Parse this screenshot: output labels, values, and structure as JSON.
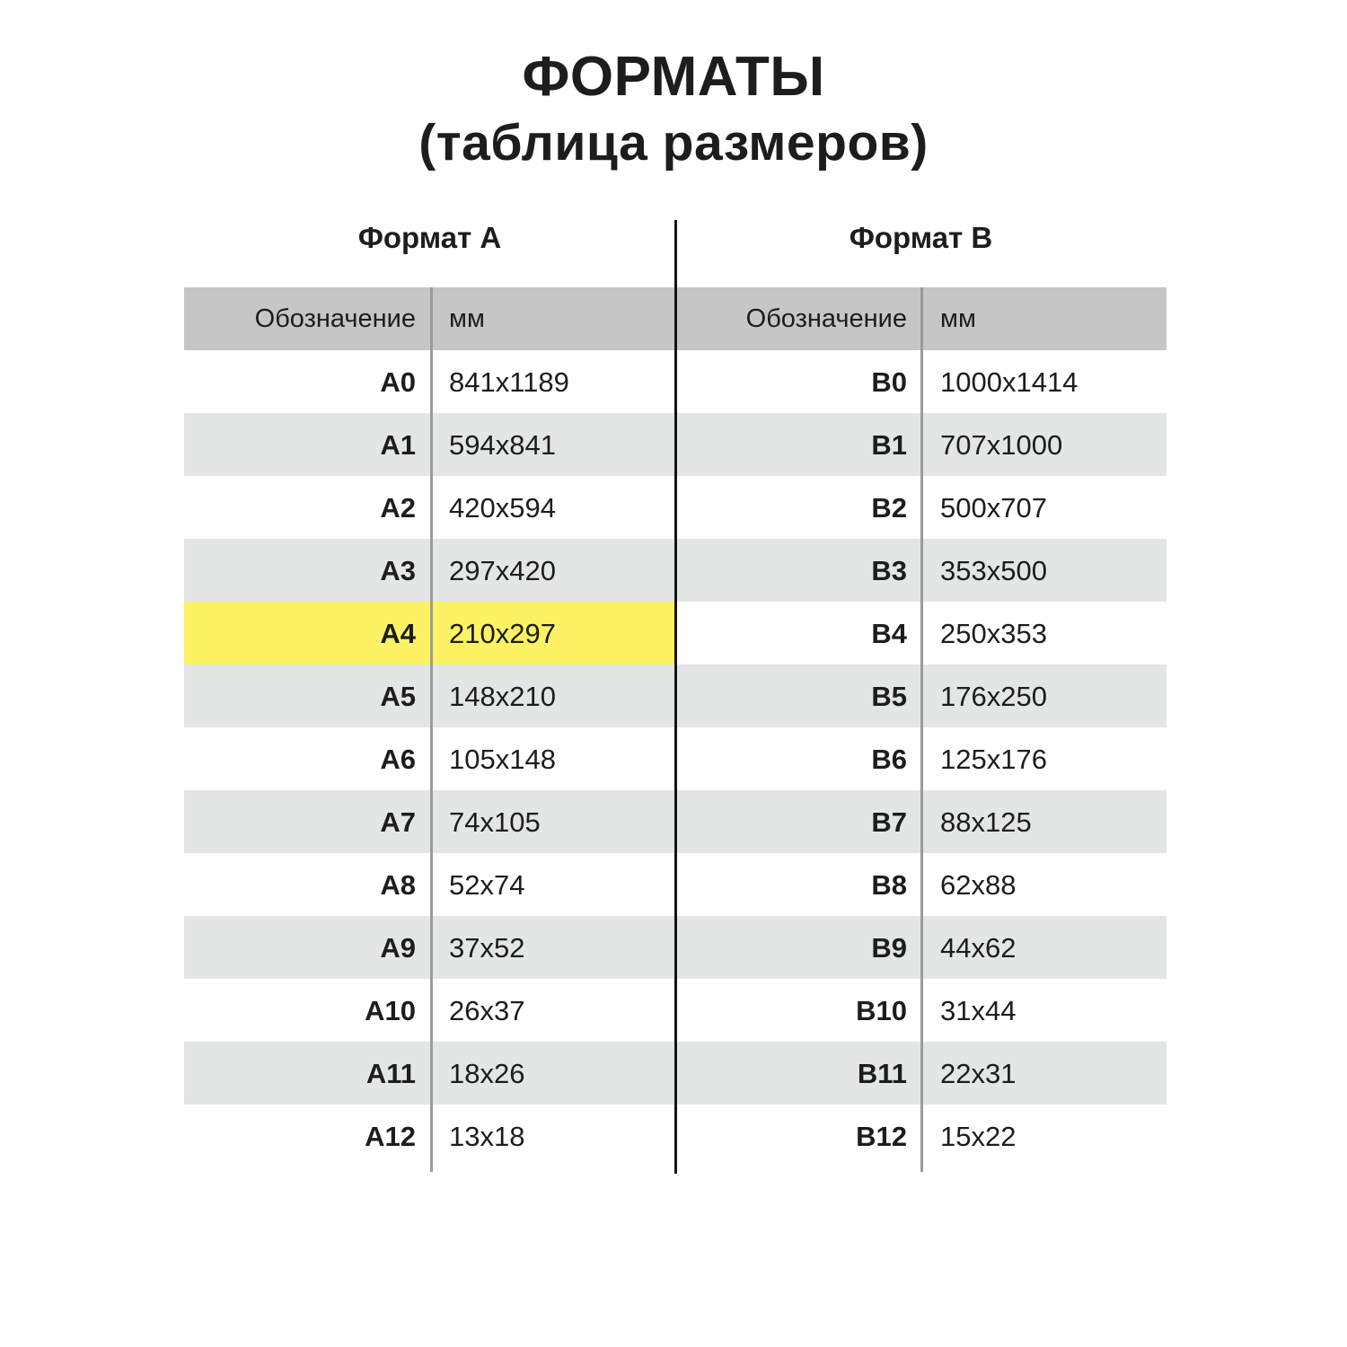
{
  "page": {
    "title_line1": "ФОРМАТЫ",
    "title_line2": "(таблица размеров)"
  },
  "colors": {
    "background": "#ffffff",
    "header_bg": "#c6c6c6",
    "row_alt_bg": "#e4e6e6",
    "highlight_bg": "#fcf263",
    "center_divider": "#141414",
    "column_divider": "#9b9b9b",
    "text": "#1d1d1d"
  },
  "highlight": {
    "table": "A",
    "row_label": "A4",
    "row_index": 4
  },
  "tables": [
    {
      "heading": "Формат A",
      "col_designation": "Обозначение",
      "col_mm": "мм",
      "rows": [
        {
          "designation": "A0",
          "mm": "841x1189"
        },
        {
          "designation": "A1",
          "mm": "594x841"
        },
        {
          "designation": "A2",
          "mm": "420x594"
        },
        {
          "designation": "A3",
          "mm": "297x420"
        },
        {
          "designation": "A4",
          "mm": "210x297"
        },
        {
          "designation": "A5",
          "mm": "148x210"
        },
        {
          "designation": "A6",
          "mm": "105x148"
        },
        {
          "designation": "A7",
          "mm": "74x105"
        },
        {
          "designation": "A8",
          "mm": "52x74"
        },
        {
          "designation": "A9",
          "mm": "37x52"
        },
        {
          "designation": "A10",
          "mm": "26x37"
        },
        {
          "designation": "A11",
          "mm": "18x26"
        },
        {
          "designation": "A12",
          "mm": "13x18"
        }
      ]
    },
    {
      "heading": "Формат B",
      "col_designation": "Обозначение",
      "col_mm": "мм",
      "rows": [
        {
          "designation": "B0",
          "mm": "1000x1414"
        },
        {
          "designation": "B1",
          "mm": "707x1000"
        },
        {
          "designation": "B2",
          "mm": "500x707"
        },
        {
          "designation": "B3",
          "mm": "353x500"
        },
        {
          "designation": "B4",
          "mm": "250x353"
        },
        {
          "designation": "B5",
          "mm": "176x250"
        },
        {
          "designation": "B6",
          "mm": "125x176"
        },
        {
          "designation": "B7",
          "mm": "88x125"
        },
        {
          "designation": "B8",
          "mm": "62x88"
        },
        {
          "designation": "B9",
          "mm": "44x62"
        },
        {
          "designation": "B10",
          "mm": "31x44"
        },
        {
          "designation": "B11",
          "mm": "22x31"
        },
        {
          "designation": "B12",
          "mm": "15x22"
        }
      ]
    }
  ]
}
